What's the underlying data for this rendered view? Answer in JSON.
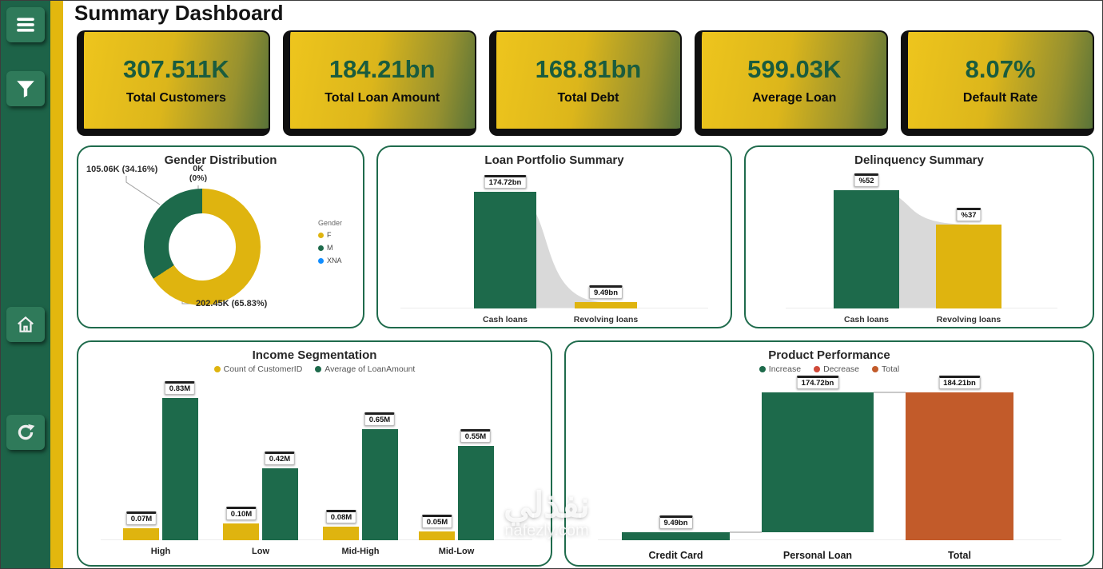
{
  "page": {
    "title": "Summary Dashboard"
  },
  "sidebar": {
    "icons": [
      "menu",
      "filter",
      "home",
      "refresh"
    ]
  },
  "kpis": [
    {
      "value": "307.511K",
      "label": "Total Customers"
    },
    {
      "value": "184.21bn",
      "label": "Total Loan Amount"
    },
    {
      "value": "168.81bn",
      "label": "Total Debt"
    },
    {
      "value": "599.03K",
      "label": "Average Loan"
    },
    {
      "value": "8.07%",
      "label": "Default Rate"
    }
  ],
  "colors": {
    "green": "#1d6a4b",
    "yellow": "#dfb40f",
    "blue": "#118DFF",
    "total_orange": "#c25b2a",
    "decrease_red": "#d04a3a",
    "sidebar_green": "#1d6348",
    "stripe_gold": "#e3b70e"
  },
  "chart_data": [
    {
      "id": "gender",
      "type": "pie",
      "title": "Gender Distribution",
      "legend_title": "Gender",
      "legend_position": "right",
      "slices": [
        {
          "label": "F",
          "pct": 65.83,
          "value_label": "202.45K (65.83%)",
          "color": "#dfb40f"
        },
        {
          "label": "M",
          "pct": 34.16,
          "value_label": "105.06K (34.16%)",
          "color": "#1d6a4b"
        },
        {
          "label": "XNA",
          "pct": 0,
          "value_label": "0K\n(0%)",
          "color": "#118DFF"
        }
      ]
    },
    {
      "id": "loan_portfolio",
      "type": "bar",
      "title": "Loan Portfolio Summary",
      "categories": [
        "Cash loans",
        "Revolving loans"
      ],
      "values": [
        174.72,
        9.49
      ],
      "value_labels": [
        "174.72bn",
        "9.49bn"
      ],
      "max": 174.72,
      "unit": "bn"
    },
    {
      "id": "delinquency",
      "type": "bar",
      "title": "Delinquency Summary",
      "categories": [
        "Cash loans",
        "Revolving loans"
      ],
      "values": [
        52,
        37
      ],
      "value_labels": [
        "%52",
        "%37"
      ],
      "max": 52,
      "unit": "%"
    },
    {
      "id": "income",
      "type": "bar",
      "title": "Income Segmentation",
      "categories": [
        "High",
        "Low",
        "Mid-High",
        "Mid-Low"
      ],
      "series": [
        {
          "name": "Count of CustomerID",
          "color": "#dfb40f",
          "values": [
            0.07,
            0.1,
            0.08,
            0.05
          ],
          "value_labels": [
            "0.07M",
            "0.10M",
            "0.08M",
            "0.05M"
          ]
        },
        {
          "name": "Average of LoanAmount",
          "color": "#1d6a4b",
          "values": [
            0.83,
            0.42,
            0.65,
            0.55
          ],
          "value_labels": [
            "0.83M",
            "0.42M",
            "0.65M",
            "0.55M"
          ]
        }
      ],
      "max": 0.83,
      "unit": "M"
    },
    {
      "id": "product",
      "type": "waterfall",
      "title": "Product Performance",
      "legend": [
        {
          "label": "Increase",
          "color": "#1d6a4b"
        },
        {
          "label": "Decrease",
          "color": "#d04a3a"
        },
        {
          "label": "Total",
          "color": "#c25b2a"
        }
      ],
      "categories": [
        "Credit Card",
        "Personal Loan",
        "Total"
      ],
      "values": [
        9.49,
        174.72,
        184.21
      ],
      "value_labels": [
        "9.49bn",
        "174.72bn",
        "184.21bn"
      ],
      "max": 184.21,
      "unit": "bn"
    }
  ],
  "watermark": {
    "arabic": "نفذلي",
    "site": "nafezly.com"
  }
}
